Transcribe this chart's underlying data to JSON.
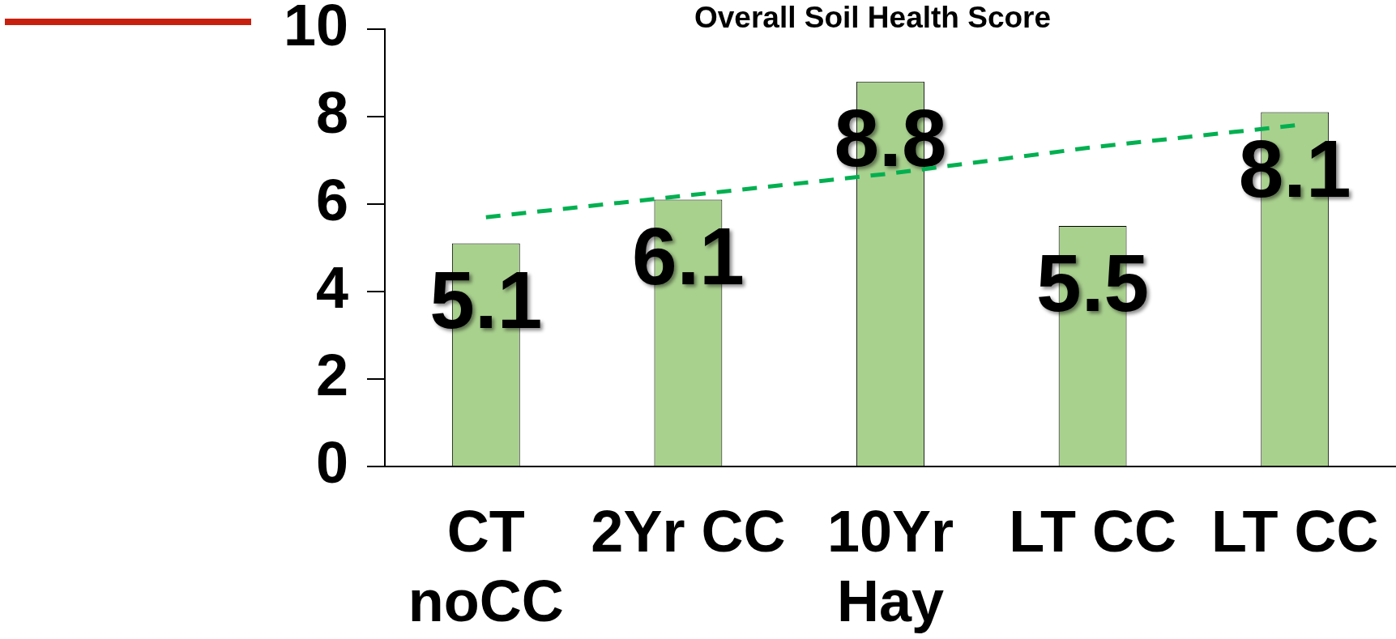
{
  "chart_data": {
    "type": "bar",
    "title": "Overall Soil Health Score",
    "categories": [
      "CT noCC",
      "2Yr CC",
      "10Yr Hay",
      "LT CC",
      "LT CC"
    ],
    "series": [
      {
        "color": "#a9d18e",
        "values": [
          5.1,
          6.1,
          8.8,
          5.5,
          8.1
        ],
        "value_labels": [
          "5.1",
          "6.1",
          "8.8",
          "5.5",
          "8.1"
        ]
      },
      {
        "type": "line",
        "color": "#00b050",
        "line_style": "dashed",
        "marker": "none",
        "values": [
          5.7,
          6.2,
          6.7,
          7.3,
          7.8
        ]
      }
    ],
    "ylim": [
      0,
      10
    ],
    "yticks": [
      0,
      2,
      4,
      6,
      8,
      10
    ]
  }
}
